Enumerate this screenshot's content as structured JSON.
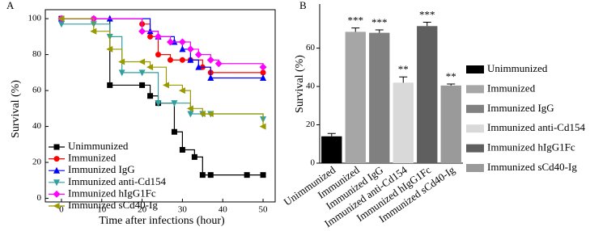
{
  "chart_data": [
    {
      "type": "line",
      "step": true,
      "panel": "A",
      "x_label": "Time after infections (hour)",
      "y_label": "Survival (%)",
      "xlim": [
        -4,
        53
      ],
      "xticks": [
        0,
        10,
        20,
        30,
        40,
        50
      ],
      "ylim": [
        -2,
        105
      ],
      "yticks": [
        0,
        20,
        40,
        60,
        80,
        100
      ],
      "legend": "lower left",
      "series": [
        {
          "name": "Unimmunized",
          "color": "#000000",
          "marker": "square",
          "x": [
            0,
            12,
            20,
            22,
            24,
            28,
            30,
            33,
            35,
            37,
            46,
            50
          ],
          "values": [
            100,
            63,
            63,
            57,
            53,
            37,
            27,
            23,
            13,
            13,
            13,
            13
          ]
        },
        {
          "name": "Immunized",
          "color": "#ff0000",
          "marker": "circle",
          "x": [
            0,
            8,
            20,
            22,
            24,
            27,
            30,
            32,
            35,
            37,
            50
          ],
          "values": [
            100,
            100,
            97,
            90,
            80,
            77,
            77,
            77,
            73,
            70,
            70
          ]
        },
        {
          "name": "Immunized IgG",
          "color": "#0000ff",
          "marker": "triangle-up",
          "x": [
            0,
            12,
            22,
            24,
            28,
            30,
            32,
            34,
            37,
            50
          ],
          "values": [
            100,
            100,
            93,
            90,
            87,
            83,
            77,
            73,
            67,
            67
          ]
        },
        {
          "name": "Immunized anti-Cd154",
          "color": "#2f9f9f",
          "marker": "triangle-down",
          "x": [
            0,
            8,
            12,
            15,
            20,
            24,
            28,
            32,
            35,
            37,
            50
          ],
          "values": [
            97,
            97,
            90,
            70,
            70,
            53,
            53,
            47,
            47,
            47,
            44
          ]
        },
        {
          "name": "Immunized hIgG1Fc",
          "color": "#ff00ff",
          "marker": "diamond",
          "x": [
            0,
            8,
            20,
            24,
            27,
            30,
            32,
            34,
            37,
            39,
            50
          ],
          "values": [
            100,
            100,
            93,
            90,
            87,
            87,
            83,
            80,
            77,
            75,
            73
          ]
        },
        {
          "name": "Immunized sCd40-Ig",
          "color": "#999900",
          "marker": "triangle-left",
          "x": [
            0,
            8,
            12,
            15,
            20,
            22,
            26,
            30,
            32,
            35,
            37,
            50
          ],
          "values": [
            100,
            93,
            83,
            76,
            76,
            73,
            63,
            60,
            50,
            47,
            47,
            40
          ]
        }
      ]
    },
    {
      "type": "bar",
      "panel": "B",
      "y_label": "Survival (%)",
      "categories": [
        "Unimmunized",
        "Immunized",
        "Immunized IgG",
        "Immunized anti-Cd154",
        "Immunized hIgG1Fc",
        "Immunized sCd40-Ig"
      ],
      "colors": [
        "#000000",
        "#a6a6a6",
        "#808080",
        "#d9d9d9",
        "#5f5f5f",
        "#9a9a9a"
      ],
      "values": [
        14,
        68.5,
        68,
        42,
        71.5,
        40.5
      ],
      "errors": [
        1.5,
        2,
        1.5,
        3,
        2,
        0.8
      ],
      "annotations": [
        "",
        "***",
        "***",
        "**",
        "***",
        "**"
      ],
      "ylim": [
        0,
        83
      ],
      "yticks": [
        0,
        20,
        40,
        60
      ],
      "legend": "right"
    }
  ]
}
